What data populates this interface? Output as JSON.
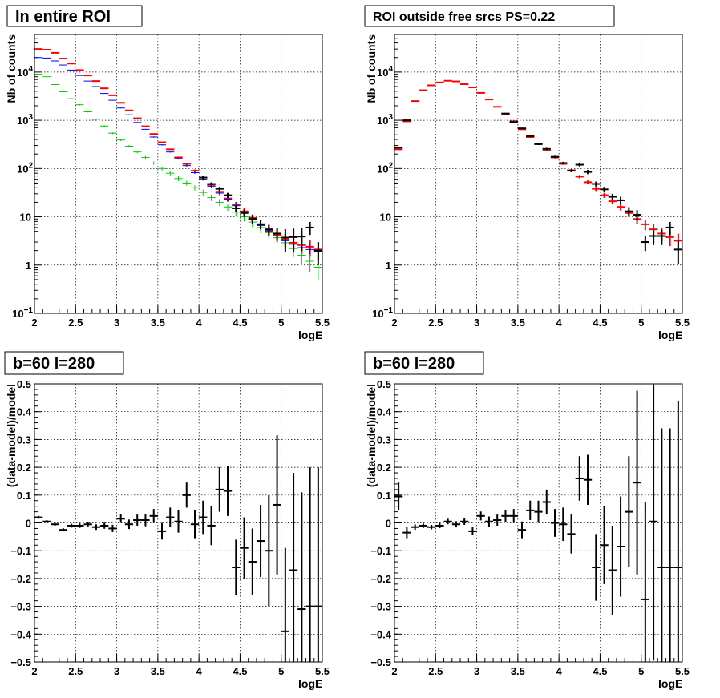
{
  "chart_data": [
    {
      "type": "scatter",
      "title": "In entire ROI",
      "xlabel": "logE",
      "ylabel": "Nb of counts",
      "xlim": [
        2,
        5.5
      ],
      "ylim": [
        0.1,
        60000
      ],
      "yscale": "log",
      "grid": true,
      "x_ticks": [
        "2",
        "2.5",
        "3",
        "3.5",
        "4",
        "4.5",
        "5",
        "5.5"
      ],
      "y_ticks": [
        {
          "value": 0.1,
          "base": "10",
          "exp": "−1"
        },
        {
          "value": 1,
          "label": "1"
        },
        {
          "value": 10,
          "label": "10"
        },
        {
          "value": 100,
          "base": "10",
          "exp": "2"
        },
        {
          "value": 1000,
          "base": "10",
          "exp": "3"
        },
        {
          "value": 10000,
          "base": "10",
          "exp": "4"
        }
      ],
      "series": [
        {
          "color": "#ff0000",
          "x": [
            2.05,
            2.15,
            2.25,
            2.35,
            2.45,
            2.55,
            2.65,
            2.75,
            2.85,
            2.95,
            3.05,
            3.15,
            3.25,
            3.35,
            3.45,
            3.55,
            3.65,
            3.75,
            3.85,
            3.95,
            4.05,
            4.15,
            4.25,
            4.35,
            4.45,
            4.55,
            4.65,
            4.75,
            4.85,
            4.95,
            5.05,
            5.15,
            5.25,
            5.35,
            5.45
          ],
          "y": [
            30000,
            29000,
            25000,
            19000,
            15000,
            11000,
            8500,
            6500,
            4600,
            3300,
            2300,
            1600,
            1100,
            750,
            520,
            350,
            250,
            170,
            125,
            90,
            65,
            46,
            33,
            24,
            18,
            13,
            9.5,
            7,
            5.3,
            4.2,
            3.4,
            2.9,
            2.6,
            2.4,
            2.1
          ],
          "yerr": [
            0.01,
            0.01,
            0.01,
            0.01,
            0.01,
            0.01,
            0.01,
            0.01,
            0.01,
            0.01,
            0.02,
            0.02,
            0.02,
            0.02,
            0.03,
            0.03,
            0.03,
            0.04,
            0.05,
            0.06,
            0.07,
            0.08,
            0.1,
            0.12,
            0.13,
            0.15,
            0.18,
            0.2,
            0.25,
            0.28,
            0.3,
            0.3,
            0.35,
            0.35,
            0.4
          ]
        },
        {
          "color": "#0000ff",
          "x": [
            2.05,
            2.15,
            2.25,
            2.35,
            2.45,
            2.55,
            2.65,
            2.75,
            2.85,
            2.95,
            3.05,
            3.15,
            3.25,
            3.35,
            3.45,
            3.55,
            3.65,
            3.75,
            3.85,
            3.95,
            4.05,
            4.15,
            4.25,
            4.35,
            4.45,
            4.55,
            4.65,
            4.75,
            4.85,
            4.95,
            5.05,
            5.15,
            5.25,
            5.35,
            5.45
          ],
          "y": [
            20000,
            19500,
            17000,
            14000,
            11000,
            8500,
            6500,
            5000,
            3600,
            2600,
            1800,
            1300,
            900,
            650,
            450,
            310,
            220,
            160,
            115,
            82,
            60,
            43,
            31,
            23,
            17,
            12,
            9,
            6.6,
            5,
            4,
            3.2,
            2.7,
            2.3,
            2.1,
            1.9
          ],
          "yerr": [
            0.01,
            0.01,
            0.01,
            0.01,
            0.01,
            0.01,
            0.01,
            0.01,
            0.01,
            0.01,
            0.02,
            0.02,
            0.02,
            0.02,
            0.03,
            0.03,
            0.03,
            0.04,
            0.05,
            0.06,
            0.07,
            0.08,
            0.1,
            0.12,
            0.13,
            0.15,
            0.18,
            0.2,
            0.25,
            0.28,
            0.3,
            0.3,
            0.35,
            0.35,
            0.4
          ]
        },
        {
          "color": "#00cc00",
          "x": [
            2.05,
            2.15,
            2.25,
            2.35,
            2.45,
            2.55,
            2.65,
            2.75,
            2.85,
            2.95,
            3.05,
            3.15,
            3.25,
            3.35,
            3.45,
            3.55,
            3.65,
            3.75,
            3.85,
            3.95,
            4.05,
            4.15,
            4.25,
            4.35,
            4.45,
            4.55,
            4.65,
            4.75,
            4.85,
            4.95,
            5.05,
            5.15,
            5.25,
            5.35,
            5.45
          ],
          "y": [
            9000,
            8000,
            5500,
            3900,
            2800,
            2100,
            1500,
            1050,
            760,
            540,
            390,
            290,
            220,
            170,
            130,
            100,
            80,
            62,
            50,
            40,
            32,
            25,
            20,
            16,
            12.5,
            10,
            7.8,
            6,
            4.7,
            3.7,
            2.9,
            2.2,
            1.6,
            1.2,
            0.9
          ],
          "yerr": [
            0.02,
            0.02,
            0.02,
            0.02,
            0.03,
            0.03,
            0.03,
            0.03,
            0.04,
            0.04,
            0.05,
            0.06,
            0.06,
            0.07,
            0.08,
            0.09,
            0.1,
            0.11,
            0.12,
            0.13,
            0.14,
            0.15,
            0.16,
            0.17,
            0.18,
            0.2,
            0.22,
            0.24,
            0.26,
            0.28,
            0.3,
            0.33,
            0.36,
            0.4,
            0.45
          ]
        },
        {
          "color": "#000000",
          "x": [
            4.05,
            4.15,
            4.25,
            4.35,
            4.45,
            4.55,
            4.65,
            4.75,
            4.85,
            4.95,
            5.05,
            5.15,
            5.25,
            5.35,
            5.45
          ],
          "y": [
            65,
            48,
            38,
            28,
            15,
            12,
            9,
            7,
            5.5,
            4.5,
            3.7,
            3.8,
            3.9,
            6,
            2
          ],
          "yerr": [
            0.07,
            0.08,
            0.1,
            0.12,
            0.15,
            0.17,
            0.2,
            0.22,
            0.25,
            0.28,
            0.5,
            0.5,
            0.5,
            0.3,
            0.5
          ]
        }
      ]
    },
    {
      "type": "scatter",
      "title": "ROI outside free srcs PS=0.22",
      "xlabel": "logE",
      "ylabel": "Nb of counts",
      "xlim": [
        2,
        5.5
      ],
      "ylim": [
        0.1,
        60000
      ],
      "yscale": "log",
      "grid": true,
      "x_ticks": [
        "2",
        "2.5",
        "3",
        "3.5",
        "4",
        "4.5",
        "5",
        "5.5"
      ],
      "y_ticks": [
        {
          "value": 0.1,
          "base": "10",
          "exp": "−1"
        },
        {
          "value": 1,
          "label": "1"
        },
        {
          "value": 10,
          "label": "10"
        },
        {
          "value": 100,
          "base": "10",
          "exp": "2"
        },
        {
          "value": 1000,
          "base": "10",
          "exp": "3"
        },
        {
          "value": 10000,
          "base": "10",
          "exp": "4"
        }
      ],
      "series": [
        {
          "color": "#ff0000",
          "x": [
            2.05,
            2.15,
            2.25,
            2.35,
            2.45,
            2.55,
            2.65,
            2.75,
            2.85,
            2.95,
            3.05,
            3.15,
            3.25,
            3.35,
            3.45,
            3.55,
            3.65,
            3.75,
            3.85,
            3.95,
            4.05,
            4.15,
            4.25,
            4.35,
            4.45,
            4.55,
            4.65,
            4.75,
            4.85,
            4.95,
            5.05,
            5.15,
            5.25,
            5.35,
            5.45
          ],
          "y": [
            250,
            950,
            2500,
            4200,
            5300,
            6100,
            6600,
            6400,
            5600,
            4800,
            3700,
            2700,
            1900,
            1350,
            950,
            650,
            450,
            330,
            235,
            170,
            125,
            92,
            68,
            52,
            38,
            28,
            21,
            16,
            12,
            9,
            7,
            5.5,
            4.5,
            3.8,
            3.2
          ],
          "yerr": [
            0.04,
            0.02,
            0.01,
            0.01,
            0.01,
            0.01,
            0.01,
            0.01,
            0.01,
            0.01,
            0.01,
            0.01,
            0.01,
            0.02,
            0.02,
            0.02,
            0.03,
            0.03,
            0.04,
            0.05,
            0.05,
            0.06,
            0.08,
            0.09,
            0.1,
            0.12,
            0.14,
            0.16,
            0.18,
            0.22,
            0.25,
            0.28,
            0.32,
            0.35,
            0.4
          ]
        },
        {
          "color": "#000000",
          "x": [
            2.05,
            2.15,
            3.35,
            3.45,
            3.55,
            3.65,
            3.75,
            3.85,
            3.95,
            4.05,
            4.15,
            4.25,
            4.35,
            4.45,
            4.55,
            4.65,
            4.75,
            4.85,
            4.95,
            5.05,
            5.15,
            5.25,
            5.35,
            5.45
          ],
          "y": [
            270,
            1000,
            1380,
            920,
            680,
            470,
            320,
            255,
            175,
            130,
            90,
            120,
            85,
            48,
            37,
            26,
            22,
            13,
            11,
            3,
            4,
            4,
            6,
            2.1
          ],
          "yerr": [
            0.04,
            0.02,
            0.02,
            0.02,
            0.03,
            0.03,
            0.04,
            0.05,
            0.05,
            0.06,
            0.07,
            0.08,
            0.1,
            0.12,
            0.13,
            0.15,
            0.18,
            0.22,
            0.25,
            0.35,
            0.35,
            0.35,
            0.3,
            0.5
          ]
        }
      ]
    },
    {
      "type": "scatter",
      "title": "b=60 l=280",
      "xlabel": "logE",
      "ylabel": "(data-model)/model",
      "xlim": [
        2,
        5.5
      ],
      "ylim": [
        -0.5,
        0.5
      ],
      "grid": true,
      "x_ticks": [
        "2",
        "2.5",
        "3",
        "3.5",
        "4",
        "4.5",
        "5",
        "5.5"
      ],
      "y_ticks": [
        "−0.5",
        "−0.4",
        "−0.3",
        "−0.2",
        "−0.1",
        "0",
        "0.1",
        "0.2",
        "0.3",
        "0.4",
        "0.5"
      ],
      "series": [
        {
          "color": "#000000",
          "x": [
            2.05,
            2.15,
            2.25,
            2.35,
            2.45,
            2.55,
            2.65,
            2.75,
            2.85,
            2.95,
            3.05,
            3.15,
            3.25,
            3.35,
            3.45,
            3.55,
            3.65,
            3.75,
            3.85,
            3.95,
            4.05,
            4.15,
            4.25,
            4.35,
            4.45,
            4.55,
            4.65,
            4.75,
            4.85,
            4.95,
            5.05,
            5.15,
            5.25,
            5.35,
            5.45
          ],
          "y": [
            0.02,
            0.005,
            -0.005,
            -0.025,
            -0.01,
            -0.01,
            -0.005,
            -0.015,
            -0.01,
            -0.02,
            0.015,
            -0.005,
            0.01,
            0.01,
            0.025,
            -0.03,
            0.02,
            0.005,
            0.1,
            -0.005,
            0.02,
            -0.01,
            0.12,
            0.115,
            -0.16,
            -0.09,
            -0.14,
            -0.065,
            -0.1,
            0.065,
            -0.39,
            -0.17,
            -0.31,
            -0.3,
            -0.3
          ],
          "yerr": [
            0.005,
            0.005,
            0.005,
            0.006,
            0.007,
            0.008,
            0.009,
            0.01,
            0.011,
            0.013,
            0.015,
            0.017,
            0.02,
            0.022,
            0.025,
            0.03,
            0.035,
            0.04,
            0.045,
            0.05,
            0.06,
            0.07,
            0.08,
            0.09,
            0.1,
            0.11,
            0.12,
            0.13,
            0.2,
            0.25,
            0.3,
            0.35,
            0.42,
            0.5,
            0.5
          ]
        }
      ]
    },
    {
      "type": "scatter",
      "title": "b=60 l=280",
      "xlabel": "logE",
      "ylabel": "(data-model)/model",
      "xlim": [
        2,
        5.5
      ],
      "ylim": [
        -0.5,
        0.5
      ],
      "grid": true,
      "x_ticks": [
        "2",
        "2.5",
        "3",
        "3.5",
        "4",
        "4.5",
        "5",
        "5.5"
      ],
      "y_ticks": [
        "−0.5",
        "−0.4",
        "−0.3",
        "−0.2",
        "−0.1",
        "0",
        "0.1",
        "0.2",
        "0.3",
        "0.4",
        "0.5"
      ],
      "series": [
        {
          "color": "#000000",
          "x": [
            2.05,
            2.15,
            2.25,
            2.35,
            2.45,
            2.55,
            2.65,
            2.75,
            2.85,
            2.95,
            3.05,
            3.15,
            3.25,
            3.35,
            3.45,
            3.55,
            3.65,
            3.75,
            3.85,
            3.95,
            4.05,
            4.15,
            4.25,
            4.35,
            4.45,
            4.55,
            4.65,
            4.75,
            4.85,
            4.95,
            5.05,
            5.15,
            5.25,
            5.35,
            5.45
          ],
          "y": [
            0.095,
            -0.035,
            -0.015,
            -0.01,
            -0.015,
            -0.01,
            0.005,
            -0.005,
            0.005,
            -0.03,
            0.025,
            0.005,
            0.01,
            0.025,
            0.025,
            -0.025,
            0.045,
            0.04,
            0.075,
            0.0,
            -0.005,
            -0.04,
            0.16,
            0.155,
            -0.16,
            -0.08,
            -0.17,
            -0.085,
            0.04,
            0.145,
            -0.275,
            0.005,
            -0.16,
            -0.16,
            -0.16
          ],
          "yerr": [
            0.05,
            0.02,
            0.01,
            0.008,
            0.008,
            0.009,
            0.01,
            0.011,
            0.012,
            0.014,
            0.016,
            0.018,
            0.02,
            0.022,
            0.025,
            0.03,
            0.035,
            0.04,
            0.045,
            0.05,
            0.06,
            0.07,
            0.08,
            0.09,
            0.12,
            0.14,
            0.16,
            0.18,
            0.2,
            0.33,
            0.35,
            0.5,
            0.5,
            0.5,
            0.6
          ]
        }
      ]
    }
  ]
}
